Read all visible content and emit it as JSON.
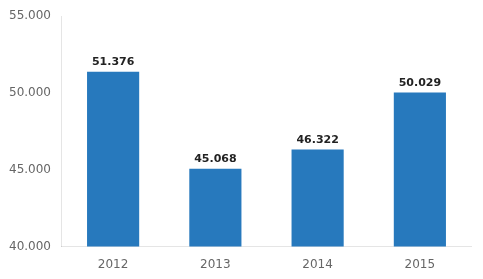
{
  "chart_data": {
    "type": "bar",
    "categories": [
      "2012",
      "2013",
      "2014",
      "2015"
    ],
    "values": [
      51376,
      45068,
      46322,
      50029
    ],
    "value_labels": [
      "51.376",
      "45.068",
      "46.322",
      "50.029"
    ],
    "data_labels": true,
    "color": "#2779BD",
    "ylim": [
      40000,
      55000
    ],
    "yticks": [
      {
        "value": 40000,
        "label": "40.000"
      },
      {
        "value": 45000,
        "label": "45.000"
      },
      {
        "value": 50000,
        "label": "50.000"
      },
      {
        "value": 55000,
        "label": "55.000"
      }
    ],
    "grid": false
  }
}
